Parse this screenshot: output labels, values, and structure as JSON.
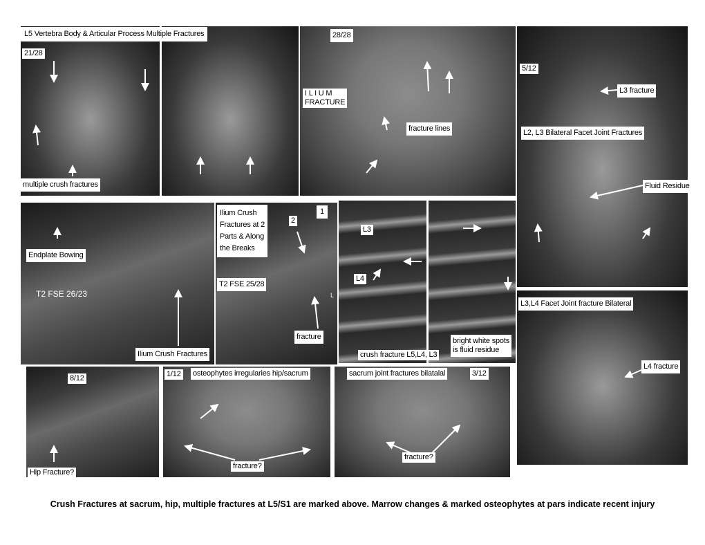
{
  "panels": [
    {
      "labels": [
        "L5 Vertebra Body & Articular Process Multiple Fractures",
        "21/28",
        "multiple crush fractures"
      ]
    },
    {
      "labels": [
        "28/28",
        [
          "I L I U M",
          "FRACTURE"
        ],
        "fracture lines"
      ]
    },
    {
      "labels": [
        "5/12",
        "L3 fracture",
        "L2, L3 Bilateral Facet Joint Fractures",
        "Fluid Residue"
      ]
    },
    {
      "labels": [
        "Endplate Bowing",
        "T2 FSE 26/23",
        "Ilium Crush Fractures"
      ]
    },
    {
      "labels": [
        [
          "Ilium Crush",
          "Fractures at 2",
          "Parts & Along",
          "the Breaks"
        ],
        "2",
        "1",
        "T2 FSE 25/28",
        "fracture",
        "L"
      ]
    },
    {
      "labels": [
        "L3",
        "L4",
        "crush fracture L5,L4, L3"
      ]
    },
    {
      "labels": [
        [
          "bright white spots",
          "is fluid residue"
        ]
      ]
    },
    {
      "labels": [
        "L3,L4 Facet Joint fracture Bilateral",
        "L4 fracture"
      ]
    },
    {
      "labels": [
        "8/12",
        "Hip Fracture?"
      ]
    },
    {
      "labels": [
        "1/12",
        "osteophytes irregularies hip/sacrum",
        "fracture?"
      ]
    },
    {
      "labels": [
        "sacrum joint fractures bilatalal",
        "3/12",
        "fracture?"
      ]
    }
  ],
  "caption": "Crush Fractures at sacrum, hip, multiple fractures at L5/S1 are marked above. Marrow changes & marked osteophytes at pars indicate recent injury"
}
